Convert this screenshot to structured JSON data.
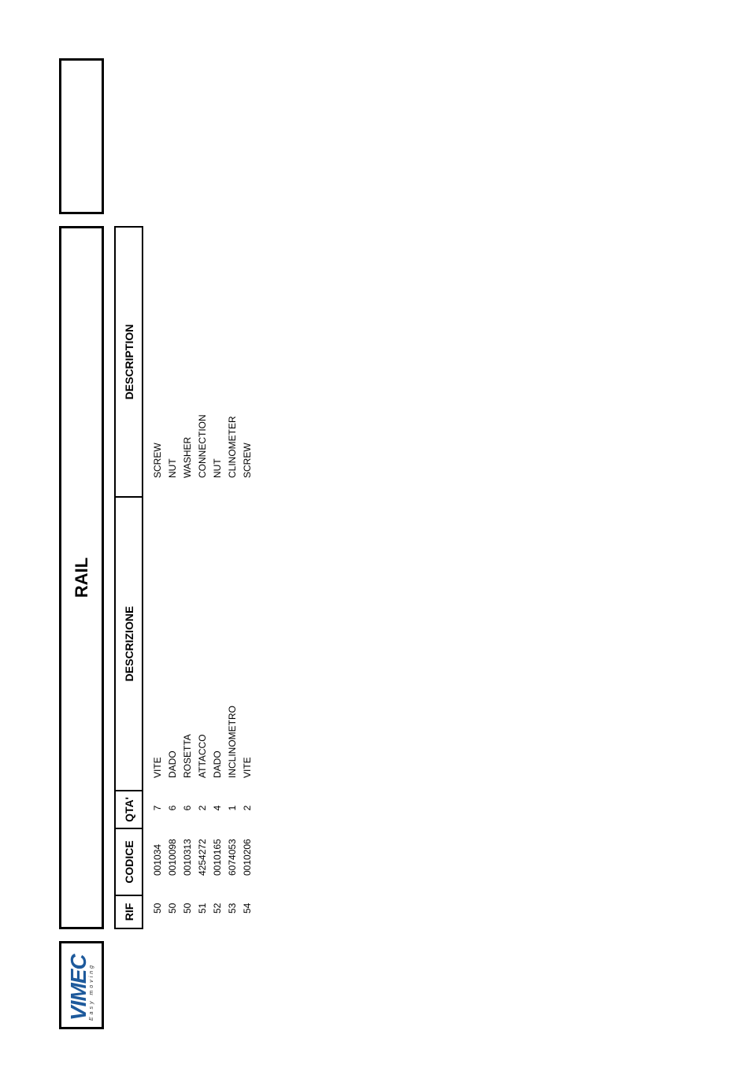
{
  "logo": {
    "brand": "VIMEC",
    "tagline": "Easy moving",
    "colors": {
      "blue": "#1e5a9c",
      "accent": "#e0a020"
    }
  },
  "title": "RAIL",
  "table": {
    "headers": [
      "RIF",
      "CODICE",
      "QTA'",
      "DESCRIZIONE",
      "DESCRIPTION"
    ],
    "rows": [
      [
        "50",
        "001034",
        "7",
        "VITE",
        "SCREW"
      ],
      [
        "50",
        "0010098",
        "6",
        "DADO",
        "NUT"
      ],
      [
        "50",
        "0010313",
        "6",
        "ROSETTA",
        "WASHER"
      ],
      [
        "51",
        "4254272",
        "2",
        "ATTACCO",
        "CONNECTION"
      ],
      [
        "52",
        "0010165",
        "4",
        "DADO",
        "NUT"
      ],
      [
        "53",
        "6074053",
        "1",
        "INCLINOMETRO",
        "CLINOMETER"
      ],
      [
        "54",
        "0010206",
        "2",
        "VITE",
        "SCREW"
      ]
    ]
  }
}
